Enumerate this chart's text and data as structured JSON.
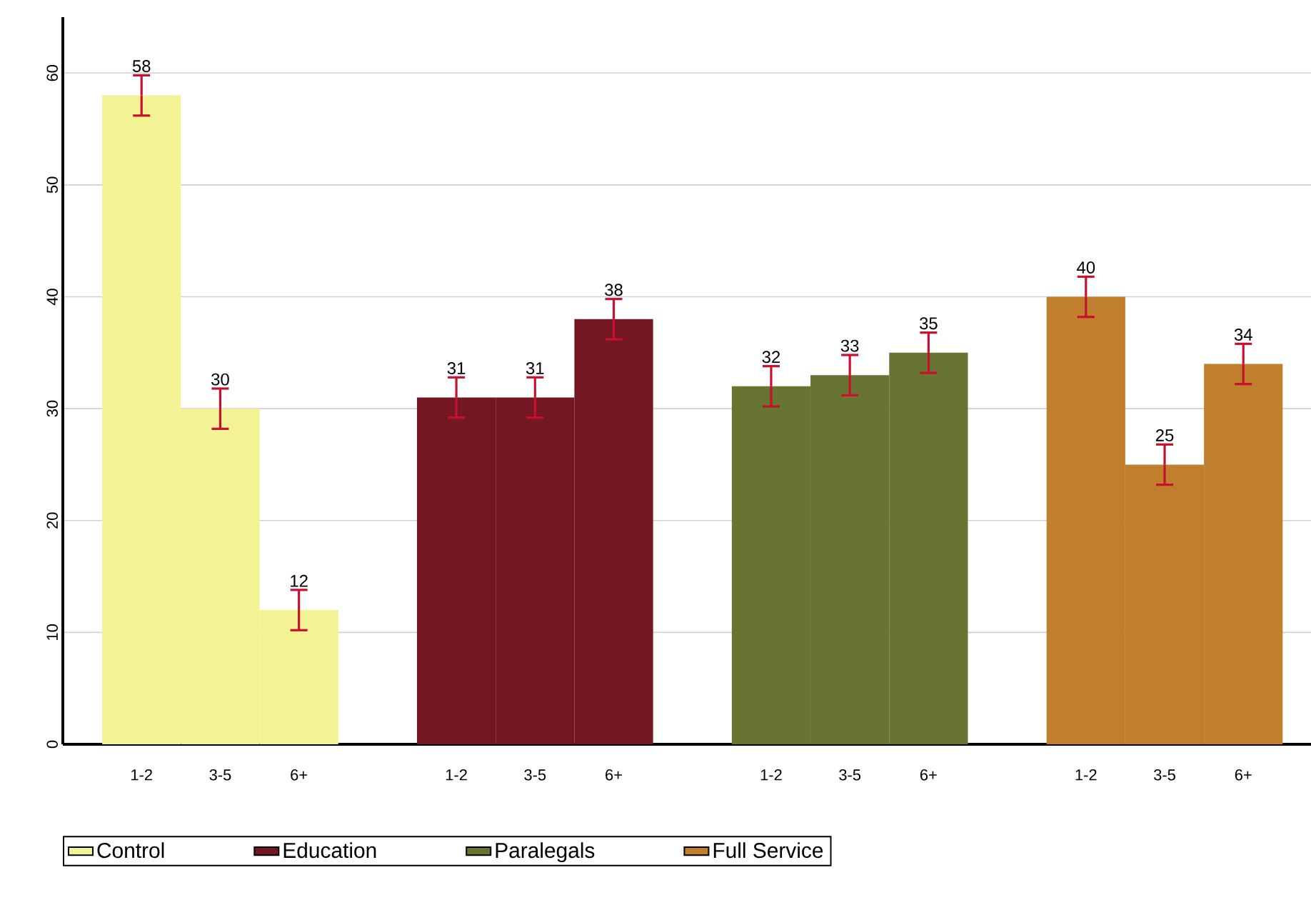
{
  "chart_data": {
    "type": "bar",
    "categories": [
      "1-2",
      "3-5",
      "6+",
      null,
      "1-2",
      "3-5",
      "6+",
      null,
      "1-2",
      "3-5",
      "6+",
      null,
      "1-2",
      "3-5",
      "6+"
    ],
    "series": [
      {
        "name": "Control",
        "color": "#f3f295",
        "values": [
          58,
          30,
          12,
          null,
          null,
          null,
          null,
          null,
          null,
          null,
          null,
          null,
          null,
          null,
          null
        ],
        "errors": [
          1.8,
          1.8,
          1.8,
          null,
          null,
          null,
          null,
          null,
          null,
          null,
          null,
          null,
          null,
          null,
          null
        ]
      },
      {
        "name": "Education",
        "color": "#731722",
        "values": [
          null,
          null,
          null,
          null,
          31,
          31,
          38,
          null,
          null,
          null,
          null,
          null,
          null,
          null,
          null
        ],
        "errors": [
          null,
          null,
          null,
          null,
          1.8,
          1.8,
          1.8,
          null,
          null,
          null,
          null,
          null,
          null,
          null,
          null
        ]
      },
      {
        "name": "Paralegals",
        "color": "#687532",
        "values": [
          null,
          null,
          null,
          null,
          null,
          null,
          null,
          null,
          32,
          33,
          35,
          null,
          null,
          null,
          null
        ],
        "errors": [
          null,
          null,
          null,
          null,
          null,
          null,
          null,
          null,
          1.8,
          1.8,
          1.8,
          null,
          null,
          null,
          null
        ]
      },
      {
        "name": "Full Service",
        "color": "#c07f2c",
        "values": [
          null,
          null,
          null,
          null,
          null,
          null,
          null,
          null,
          null,
          null,
          null,
          null,
          40,
          25,
          34
        ],
        "errors": [
          null,
          null,
          null,
          null,
          null,
          null,
          null,
          null,
          null,
          null,
          null,
          null,
          1.8,
          1.8,
          1.8
        ]
      }
    ],
    "ylim": [
      0,
      65
    ],
    "yticks": [
      0,
      10,
      20,
      30,
      40,
      50,
      60
    ],
    "grid": "y",
    "legend": "bottom",
    "data_labels": true
  }
}
